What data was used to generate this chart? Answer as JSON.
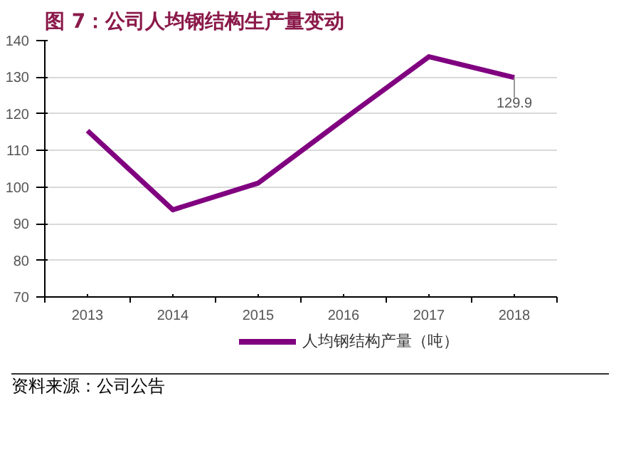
{
  "chart_data": {
    "type": "line",
    "title": "图 7：公司人均钢结构生产量变动",
    "categories": [
      "2013",
      "2014",
      "2015",
      "2016",
      "2017",
      "2018"
    ],
    "series": [
      {
        "name": "人均钢结构产量（吨）",
        "color": "#800080",
        "values": [
          115.4,
          93.8,
          101.1,
          118.5,
          135.6,
          129.9
        ],
        "value_labels": [
          null,
          null,
          null,
          null,
          null,
          "129.9"
        ]
      }
    ],
    "ylim": [
      70,
      140
    ],
    "yticks": [
      70,
      80,
      90,
      100,
      110,
      120,
      130,
      140
    ],
    "grid": "y",
    "legend": "bottom",
    "marker": "none",
    "line_style": "solid",
    "annotations": [
      "资料来源：公司公告"
    ]
  }
}
